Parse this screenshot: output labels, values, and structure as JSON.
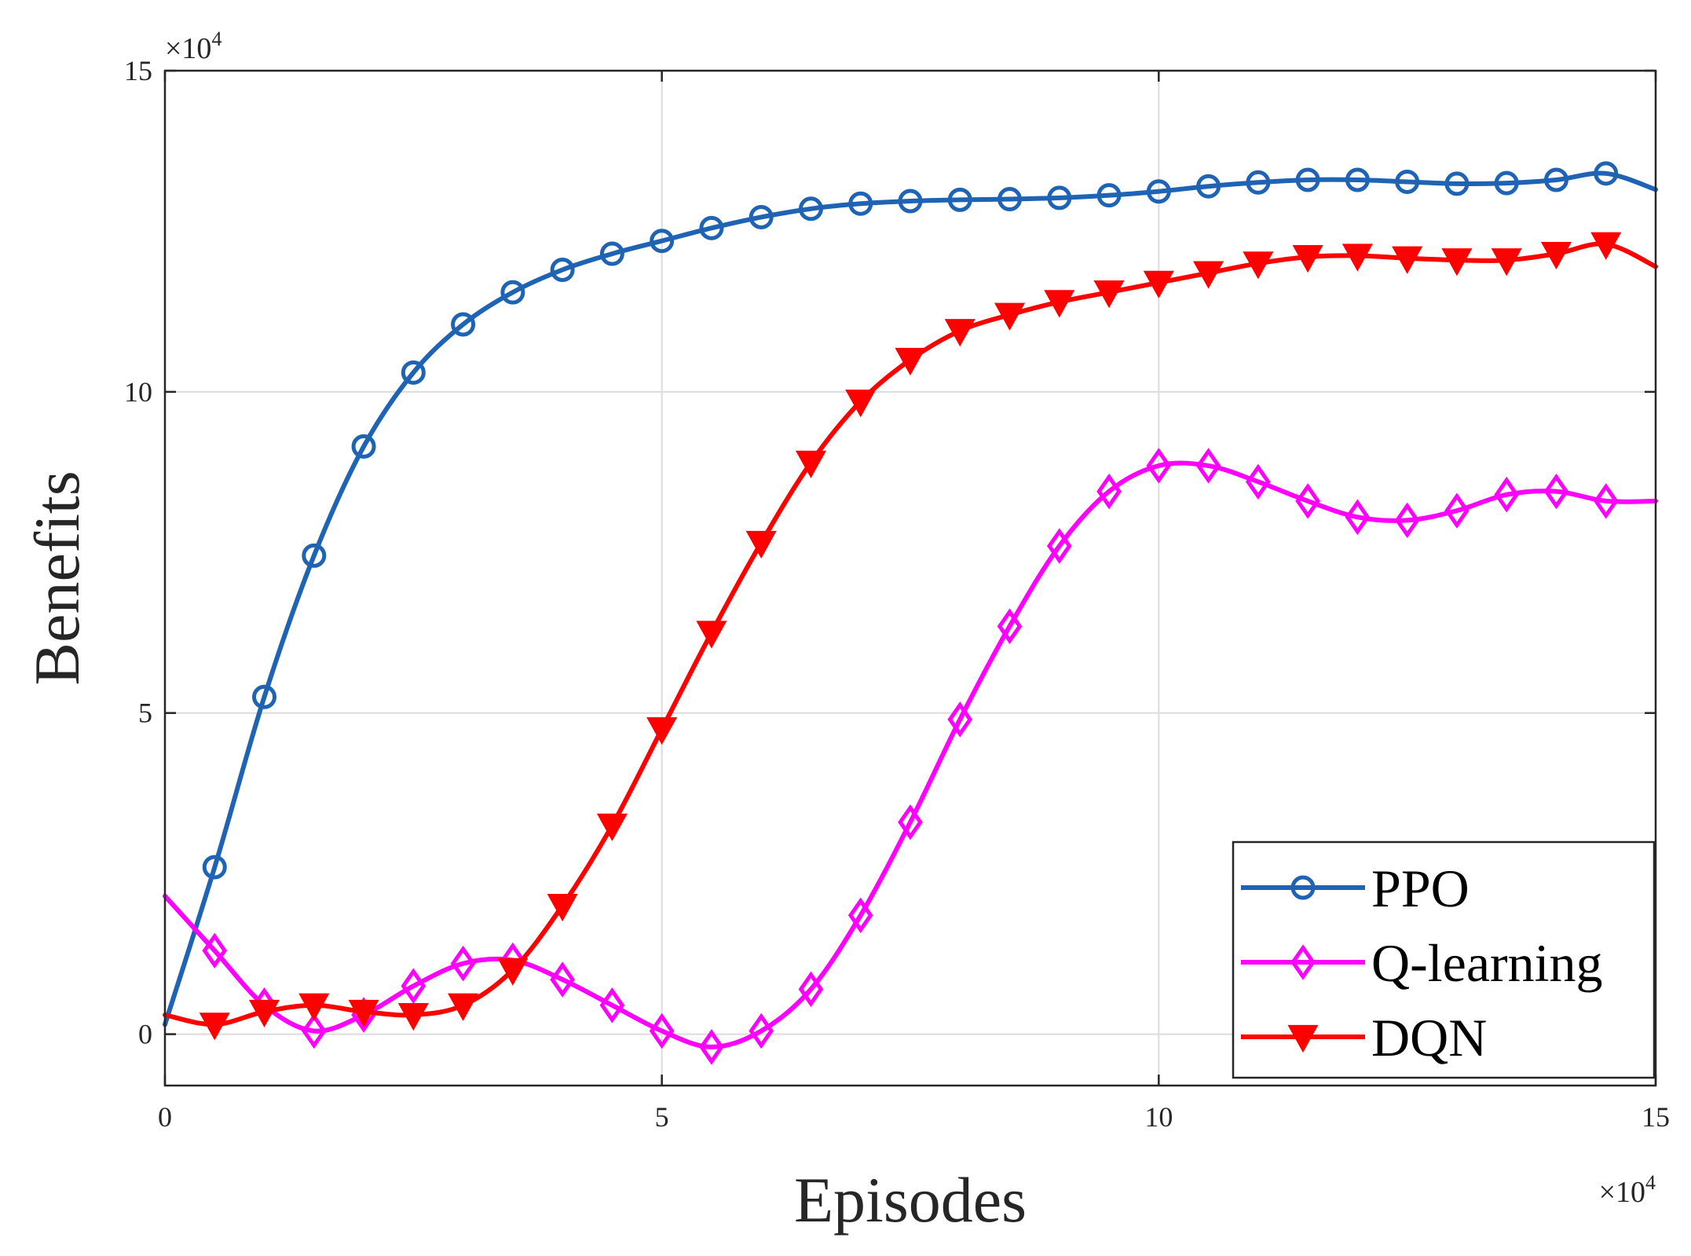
{
  "chart_data": {
    "type": "line",
    "title": "",
    "xlabel": "Episodes",
    "ylabel": "Benefits",
    "x_exponent": {
      "base": "×10",
      "power": "4"
    },
    "y_exponent": {
      "base": "×10",
      "power": "4"
    },
    "xlim": [
      0,
      15
    ],
    "ylim": [
      -0.8,
      15
    ],
    "xticks": [
      0,
      5,
      10,
      15
    ],
    "yticks": [
      0,
      5,
      10,
      15
    ],
    "xtick_labels": [
      "0",
      "5",
      "10",
      "15"
    ],
    "ytick_labels": [
      "0",
      "5",
      "10",
      "15"
    ],
    "grid": true,
    "legend_position": "bottom-right",
    "series": [
      {
        "name": "PPO",
        "color": "#1f63b5",
        "marker": "circle",
        "x": [
          0,
          0.5,
          1,
          1.5,
          2,
          2.5,
          3,
          3.5,
          4,
          4.5,
          5,
          5.5,
          6,
          6.5,
          7,
          7.5,
          8,
          8.5,
          9,
          9.5,
          10,
          10.5,
          11,
          11.5,
          12,
          12.5,
          13,
          13.5,
          14,
          14.5,
          15
        ],
        "values": [
          0.15,
          2.6,
          5.25,
          7.45,
          9.15,
          10.3,
          11.05,
          11.55,
          11.9,
          12.15,
          12.35,
          12.55,
          12.72,
          12.85,
          12.93,
          12.97,
          12.99,
          13.0,
          13.02,
          13.06,
          13.12,
          13.2,
          13.26,
          13.3,
          13.3,
          13.27,
          13.24,
          13.25,
          13.3,
          13.4,
          13.15
        ],
        "marker_x": [
          0.5,
          1,
          1.5,
          2,
          2.5,
          3,
          3.5,
          4,
          4.5,
          5,
          5.5,
          6,
          6.5,
          7,
          7.5,
          8,
          8.5,
          9,
          9.5,
          10,
          10.5,
          11,
          11.5,
          12,
          12.5,
          13,
          13.5,
          14,
          14.5
        ]
      },
      {
        "name": "Q-learning",
        "color": "#ff00ff",
        "marker": "diamond",
        "x": [
          0,
          0.5,
          1,
          1.5,
          2,
          2.5,
          3,
          3.5,
          4,
          4.5,
          5,
          5.5,
          6,
          6.5,
          7,
          7.5,
          8,
          8.5,
          9,
          9.5,
          10,
          10.5,
          11,
          11.5,
          12,
          12.5,
          13,
          13.5,
          14,
          14.5,
          15
        ],
        "values": [
          2.15,
          1.3,
          0.45,
          0.05,
          0.3,
          0.75,
          1.1,
          1.15,
          0.85,
          0.45,
          0.05,
          -0.2,
          0.05,
          0.7,
          1.85,
          3.3,
          4.9,
          6.35,
          7.6,
          8.45,
          8.85,
          8.85,
          8.6,
          8.3,
          8.05,
          8.0,
          8.15,
          8.4,
          8.45,
          8.3,
          8.3
        ],
        "marker_x": [
          0.5,
          1,
          1.5,
          2,
          2.5,
          3,
          3.5,
          4,
          4.5,
          5,
          5.5,
          6,
          6.5,
          7,
          7.5,
          8,
          8.5,
          9,
          9.5,
          10,
          10.5,
          11,
          11.5,
          12,
          12.5,
          13,
          13.5,
          14,
          14.5
        ]
      },
      {
        "name": "DQN",
        "color": "#ff0000",
        "marker": "triangle-down",
        "x": [
          0,
          0.5,
          1,
          1.5,
          2,
          2.5,
          3,
          3.5,
          4,
          4.5,
          5,
          5.5,
          6,
          6.5,
          7,
          7.5,
          8,
          8.5,
          9,
          9.5,
          10,
          10.5,
          11,
          11.5,
          12,
          12.5,
          13,
          13.5,
          14,
          14.5,
          15
        ],
        "values": [
          0.3,
          0.15,
          0.35,
          0.45,
          0.35,
          0.3,
          0.45,
          1.0,
          2.0,
          3.25,
          4.75,
          6.25,
          7.65,
          8.9,
          9.85,
          10.5,
          10.95,
          11.2,
          11.4,
          11.55,
          11.7,
          11.85,
          12.0,
          12.1,
          12.12,
          12.08,
          12.05,
          12.05,
          12.15,
          12.3,
          11.95
        ],
        "marker_x": [
          0.5,
          1,
          1.5,
          2,
          2.5,
          3,
          3.5,
          4,
          4.5,
          5,
          5.5,
          6,
          6.5,
          7,
          7.5,
          8,
          8.5,
          9,
          9.5,
          10,
          10.5,
          11,
          11.5,
          12,
          12.5,
          13,
          13.5,
          14,
          14.5
        ]
      }
    ]
  }
}
